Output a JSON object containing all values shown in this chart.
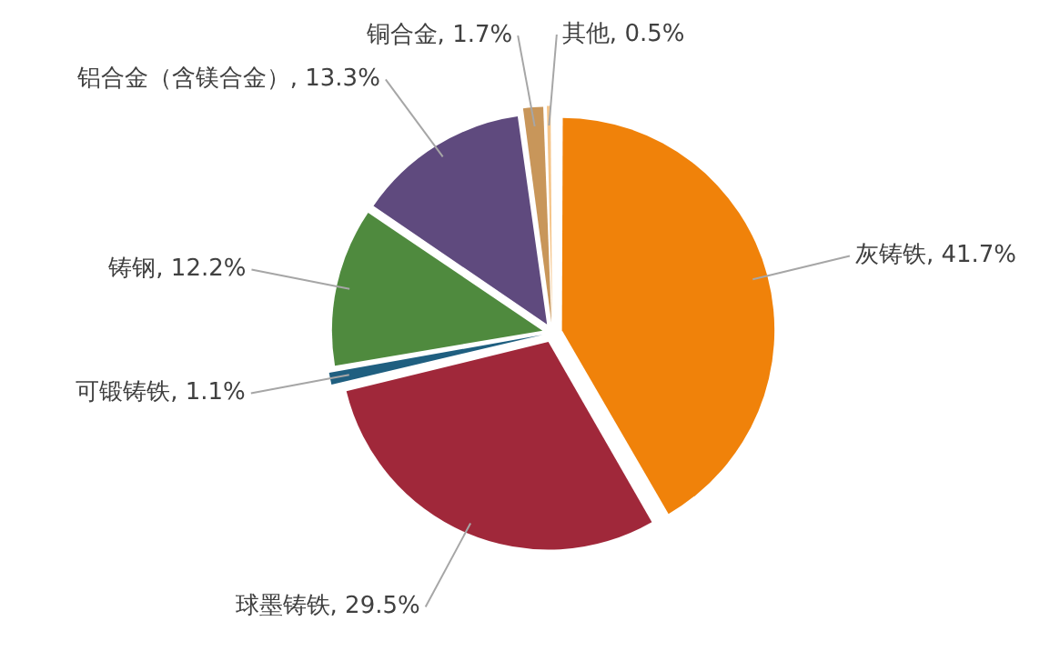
{
  "chart_data": {
    "type": "pie",
    "categories": [
      "灰铸铁",
      "球墨铸铁",
      "可锻铸铁",
      "铸钢",
      "铝合金（含镁合金）",
      "铜合金",
      "其他"
    ],
    "values": [
      41.7,
      29.5,
      1.1,
      12.2,
      13.3,
      1.7,
      0.5
    ],
    "value_labels": [
      "41.7%",
      "29.5%",
      "1.1%",
      "12.2%",
      "13.3%",
      "1.7%",
      "0.5%"
    ],
    "colors": [
      "#f0820a",
      "#a0283a",
      "#1f5f80",
      "#4f8a3e",
      "#5f4a7e",
      "#c8965a",
      "#f5c58a"
    ],
    "legend": false
  }
}
